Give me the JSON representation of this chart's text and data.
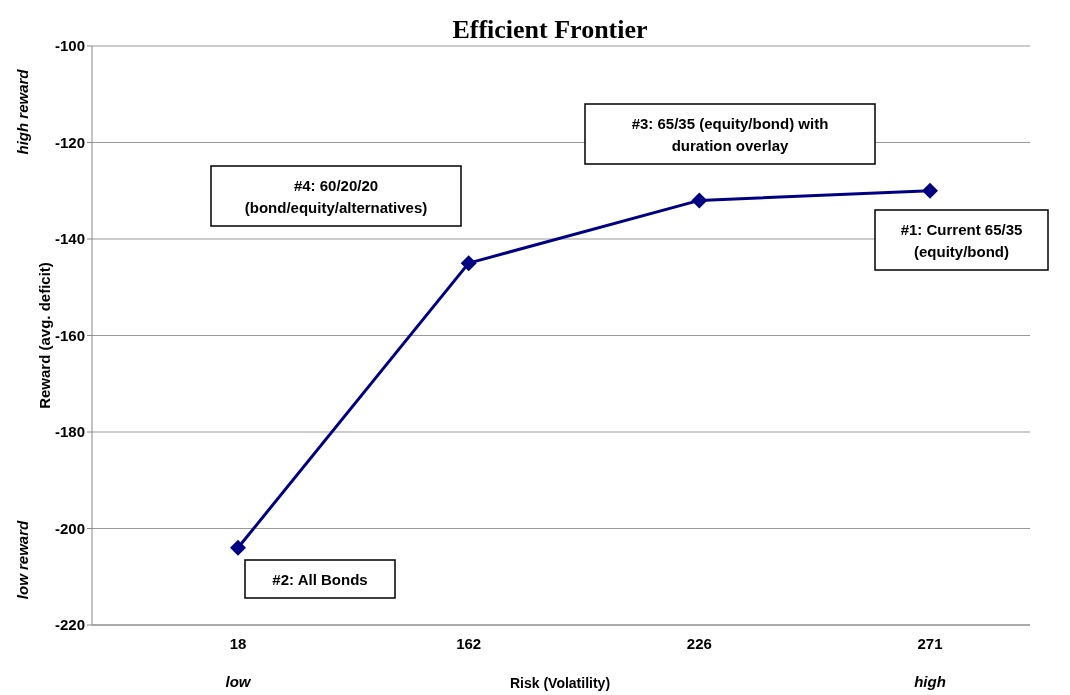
{
  "chart_data": {
    "type": "line",
    "title": "Efficient Frontier",
    "xlabel": "Risk (Volatility)",
    "ylabel": "Reward (avg. deficit)",
    "categories": [
      "18",
      "162",
      "226",
      "271"
    ],
    "series": [
      {
        "color": "#000080",
        "values": [
          -204,
          -145,
          -132,
          -130
        ]
      }
    ],
    "ylim": [
      -220,
      -100
    ],
    "yticks": [
      -220,
      -200,
      -180,
      -160,
      -140,
      -120,
      -100
    ],
    "grid": "y",
    "marker": "diamond",
    "annotations": [
      "#2:  All Bonds",
      "#4:  60/20/20\n(bond/equity/alternatives)",
      "#3:  65/35 (equity/bond) with\nduration overlay",
      "#1:  Current 65/35\n(equity/bond)",
      "low",
      "high",
      "high reward",
      "low reward"
    ]
  }
}
